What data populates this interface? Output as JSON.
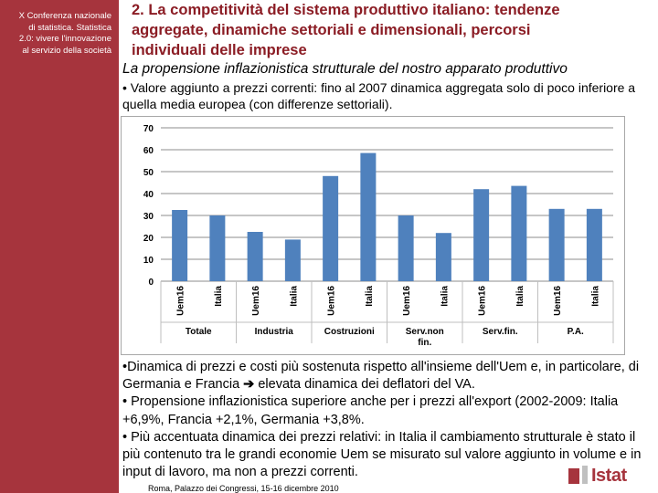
{
  "sidebar": {
    "lines": [
      "X Conferenza nazionale",
      "di statistica. Statistica",
      "2.0: vivere l'innovazione",
      "al servizio della società"
    ]
  },
  "header": {
    "title_lines": [
      "2. La competitività del sistema produttivo italiano: tendenze",
      "aggregate, dinamiche settoriali e dimensionali, percorsi",
      "individuali delle imprese"
    ],
    "subtitle": "La propensione inflazionistica strutturale del nostro apparato produttivo",
    "intro_bullet": "• Valore aggiunto a prezzi correnti: fino al 2007 dinamica aggregata solo di poco inferiore a quella media europea (con differenze settoriali)."
  },
  "chart_data": {
    "type": "bar",
    "title": "",
    "xlabel": "",
    "ylabel": "",
    "ylim": [
      0,
      70
    ],
    "yticks": [
      0,
      10,
      20,
      30,
      40,
      50,
      60,
      70
    ],
    "grid": true,
    "bar_color": "#4f81bd",
    "bars": [
      {
        "label": "Uem16",
        "group": "Totale",
        "value": 32.5
      },
      {
        "label": "Italia",
        "group": "Totale",
        "value": 30
      },
      {
        "label": "Uem16",
        "group": "Industria",
        "value": 22.5
      },
      {
        "label": "Italia",
        "group": "Industria",
        "value": 19
      },
      {
        "label": "Uem16",
        "group": "Costruzioni",
        "value": 48
      },
      {
        "label": "Italia",
        "group": "Costruzioni",
        "value": 58.5
      },
      {
        "label": "Uem16",
        "group": "Serv.non fin.",
        "value": 30
      },
      {
        "label": "Italia",
        "group": "Serv.non fin.",
        "value": 22
      },
      {
        "label": "Uem16",
        "group": "Serv.fin.",
        "value": 42
      },
      {
        "label": "Italia",
        "group": "Serv.fin.",
        "value": 43.5
      },
      {
        "label": "Uem16",
        "group": "P.A.",
        "value": 33
      },
      {
        "label": "Italia",
        "group": "P.A.",
        "value": 33
      }
    ],
    "groups": [
      {
        "lines": [
          "Totale"
        ]
      },
      {
        "lines": [
          "Industria"
        ]
      },
      {
        "lines": [
          "Costruzioni"
        ]
      },
      {
        "lines": [
          "Serv.non",
          "fin."
        ]
      },
      {
        "lines": [
          "Serv.fin."
        ]
      },
      {
        "lines": [
          "P.A."
        ]
      }
    ]
  },
  "body": {
    "p1_before_arrow": "•Dinamica di prezzi e costi più sostenuta rispetto all'insieme dell'Uem e, in particolare, di Germania e Francia ",
    "arrow": "➔",
    "p1_after_arrow": " elevata dinamica dei deflatori del VA.",
    "p2": "• Propensione inflazionistica superiore anche per i prezzi all'export (2002-2009: Italia +6,9%, Francia +2,1%, Germania +3,8%.",
    "p3": "• Più accentuata dinamica dei prezzi relativi: in Italia il cambiamento strutturale è stato il più contenuto tra le grandi economie Uem se misurato sul valore aggiunto in volume e in input di lavoro, ma non a prezzi correnti."
  },
  "footer": {
    "text": "Roma, Palazzo dei Congressi, 15-16 dicembre 2010"
  },
  "logo": {
    "text": "Istat"
  }
}
